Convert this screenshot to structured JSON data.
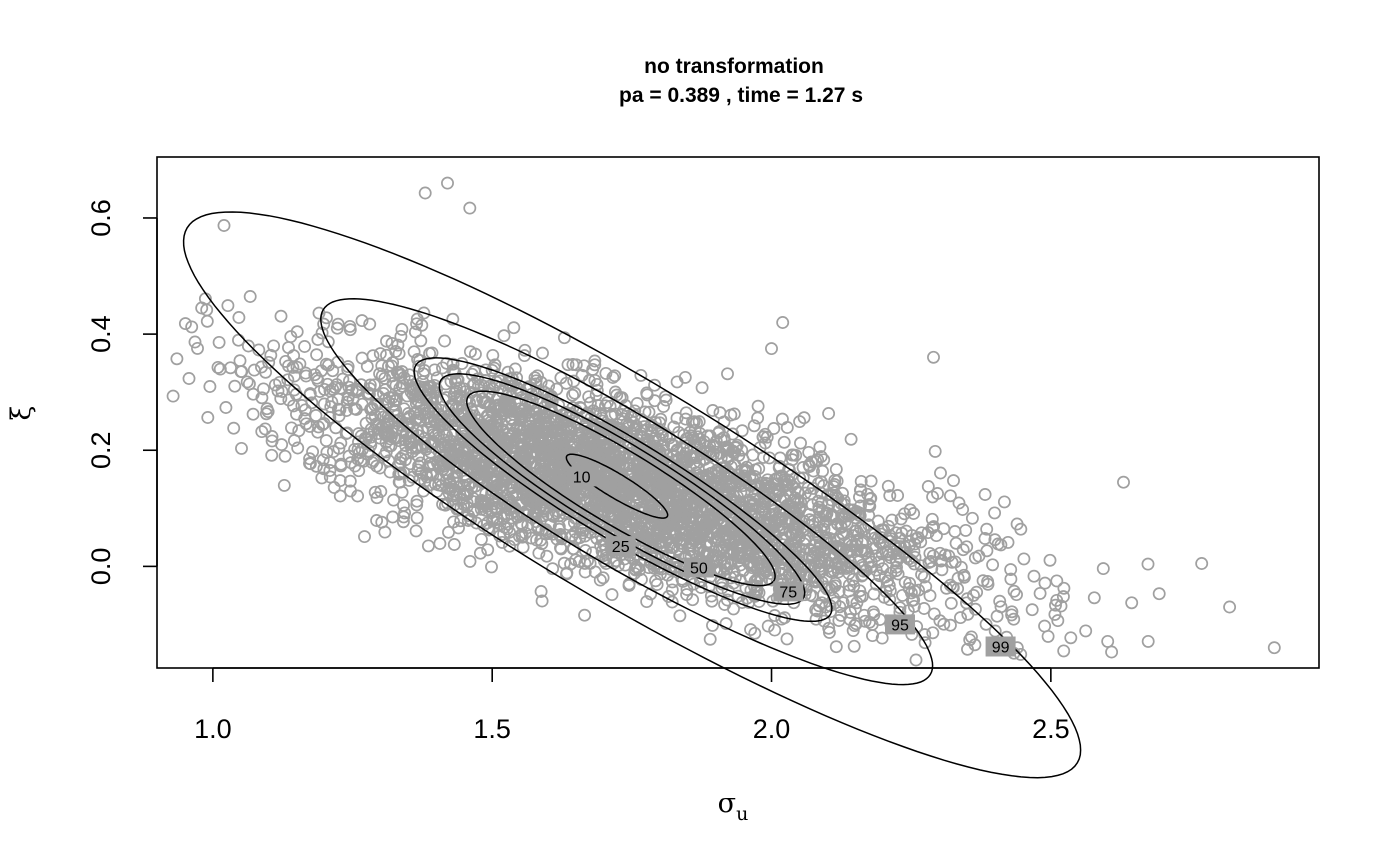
{
  "chart_data": {
    "type": "scatter",
    "title": "no transformation",
    "subtitle": "pa =  0.389 , time =  1.27 s",
    "xlabel": "σ",
    "xlabel_sub": "u",
    "ylabel": "ξ",
    "xlim": [
      0.9,
      2.98
    ],
    "ylim": [
      -0.175,
      0.705
    ],
    "xticks": [
      1.0,
      1.5,
      2.0,
      2.5
    ],
    "xtick_labels": [
      "1.0",
      "1.5",
      "2.0",
      "2.5"
    ],
    "yticks": [
      0.0,
      0.2,
      0.4,
      0.6
    ],
    "ytick_labels": [
      "0.0",
      "0.2",
      "0.4",
      "0.6"
    ],
    "grid": false,
    "point_color": "#a0a0a0",
    "contour_color": "#000000",
    "points": {
      "count": 4000,
      "center": [
        1.72,
        0.14
      ],
      "sd": [
        0.27,
        0.105
      ],
      "correlation": -0.72
    },
    "contours": [
      {
        "label": "10",
        "label_at": [
          1.66,
          0.155
        ]
      },
      {
        "label": "25",
        "label_at": [
          1.73,
          0.035
        ]
      },
      {
        "label": "50",
        "label_at": [
          1.87,
          -0.002
        ]
      },
      {
        "label": "75",
        "label_at": [
          2.03,
          -0.043
        ]
      },
      {
        "label": "95",
        "label_at": [
          2.23,
          -0.1
        ]
      },
      {
        "label": "99",
        "label_at": [
          2.41,
          -0.138
        ]
      }
    ],
    "notable_points": [
      [
        0.98,
        0.445
      ],
      [
        1.02,
        0.587
      ],
      [
        1.38,
        0.643
      ],
      [
        1.42,
        0.66
      ],
      [
        1.46,
        0.617
      ],
      [
        2.9,
        -0.14
      ],
      [
        2.82,
        -0.07
      ],
      [
        2.77,
        0.005
      ],
      [
        2.63,
        0.145
      ],
      [
        2.29,
        0.36
      ],
      [
        2.02,
        0.42
      ],
      [
        2.0,
        0.375
      ],
      [
        2.44,
        -0.14
      ]
    ]
  }
}
